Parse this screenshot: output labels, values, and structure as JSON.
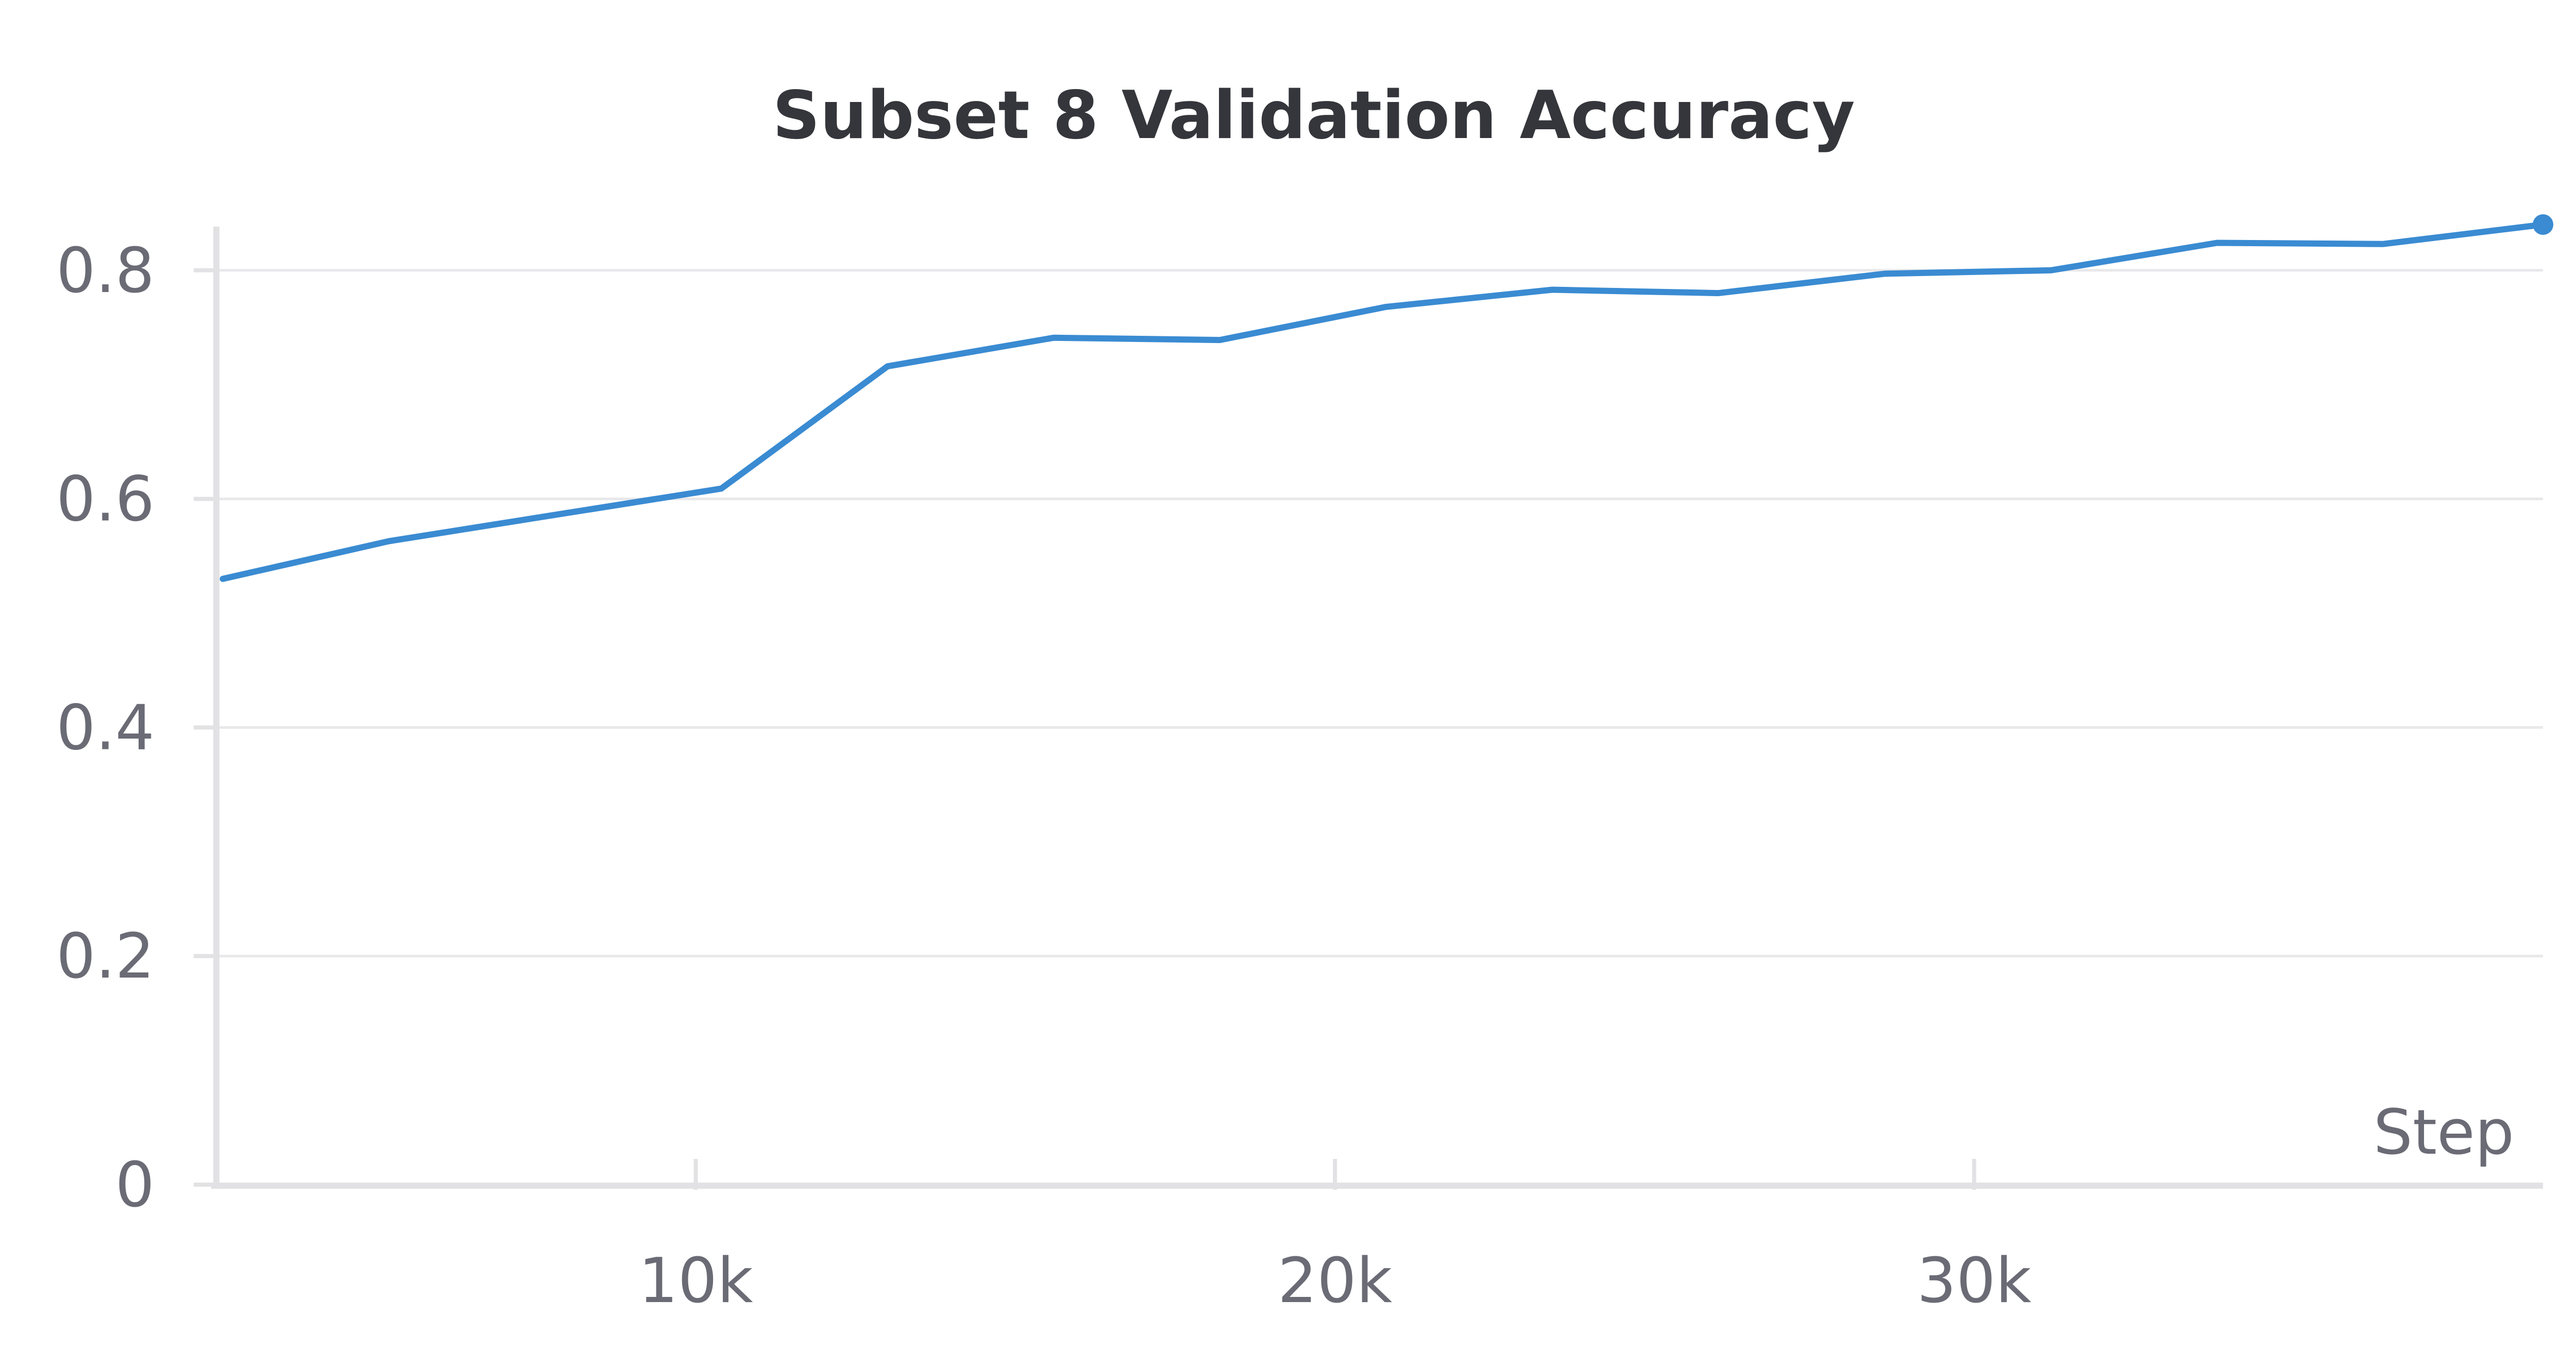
{
  "chart_data": {
    "type": "line",
    "title": "Subset 8 Validation Accuracy",
    "xlabel": "Step",
    "ylabel": "",
    "xlim": [
      2500,
      38900
    ],
    "ylim": [
      0,
      0.84
    ],
    "x_ticks": [
      10000,
      20000,
      30000
    ],
    "x_tick_labels": [
      "10k",
      "20k",
      "30k"
    ],
    "y_ticks": [
      0,
      0.2,
      0.4,
      0.6,
      0.8
    ],
    "y_tick_labels": [
      "0",
      "0.2",
      "0.4",
      "0.6",
      "0.8"
    ],
    "grid": true,
    "legend": "none",
    "series": [
      {
        "color": "#3a8bd2",
        "x": [
          2600,
          5200,
          7800,
          10400,
          13000,
          15600,
          18200,
          20800,
          23400,
          26000,
          28600,
          31200,
          33800,
          36400,
          38900
        ],
        "y": [
          0.53,
          0.563,
          0.586,
          0.609,
          0.716,
          0.741,
          0.739,
          0.768,
          0.783,
          0.78,
          0.797,
          0.8,
          0.824,
          0.823,
          0.84
        ]
      }
    ]
  }
}
